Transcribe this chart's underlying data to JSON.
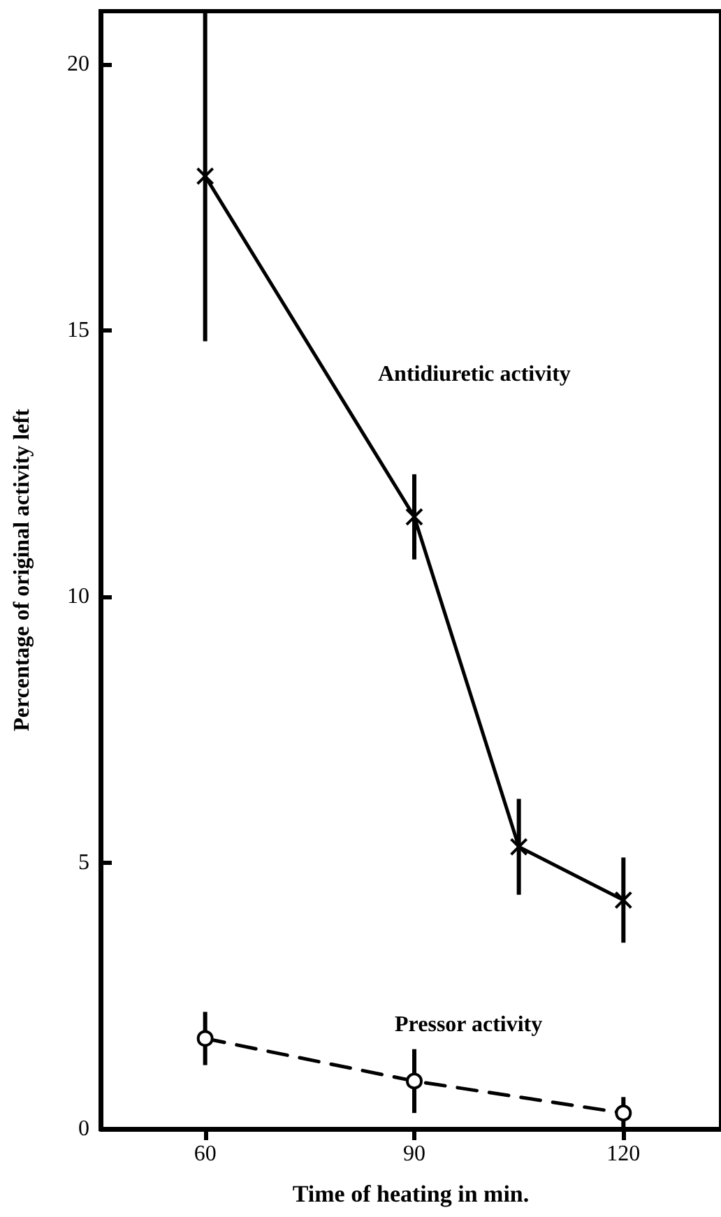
{
  "chart_data": {
    "type": "line",
    "xlabel": "Time of heating in min.",
    "ylabel": "Percentage of original activity left",
    "xlim": [
      45,
      134
    ],
    "xticks": [
      60,
      90,
      120
    ],
    "ylim": [
      0,
      21
    ],
    "yticks": [
      0,
      5,
      10,
      15,
      20
    ],
    "grid": false,
    "legend": false,
    "series": [
      {
        "name": "Antidiuretic activity",
        "color": "#000000",
        "x": [
          60,
          90,
          105,
          120
        ],
        "values": [
          17.9,
          11.5,
          5.3,
          4.3
        ],
        "errors": [
          3.1,
          0.8,
          0.9,
          0.8
        ],
        "marker": "cross",
        "line_style": "solid"
      },
      {
        "name": "Pressor activity",
        "color": "#000000",
        "x": [
          60,
          90,
          120
        ],
        "values": [
          1.7,
          0.9,
          0.3
        ],
        "errors": [
          0.5,
          0.6,
          0.3
        ],
        "marker": "circle",
        "line_style": "dashed"
      }
    ]
  }
}
